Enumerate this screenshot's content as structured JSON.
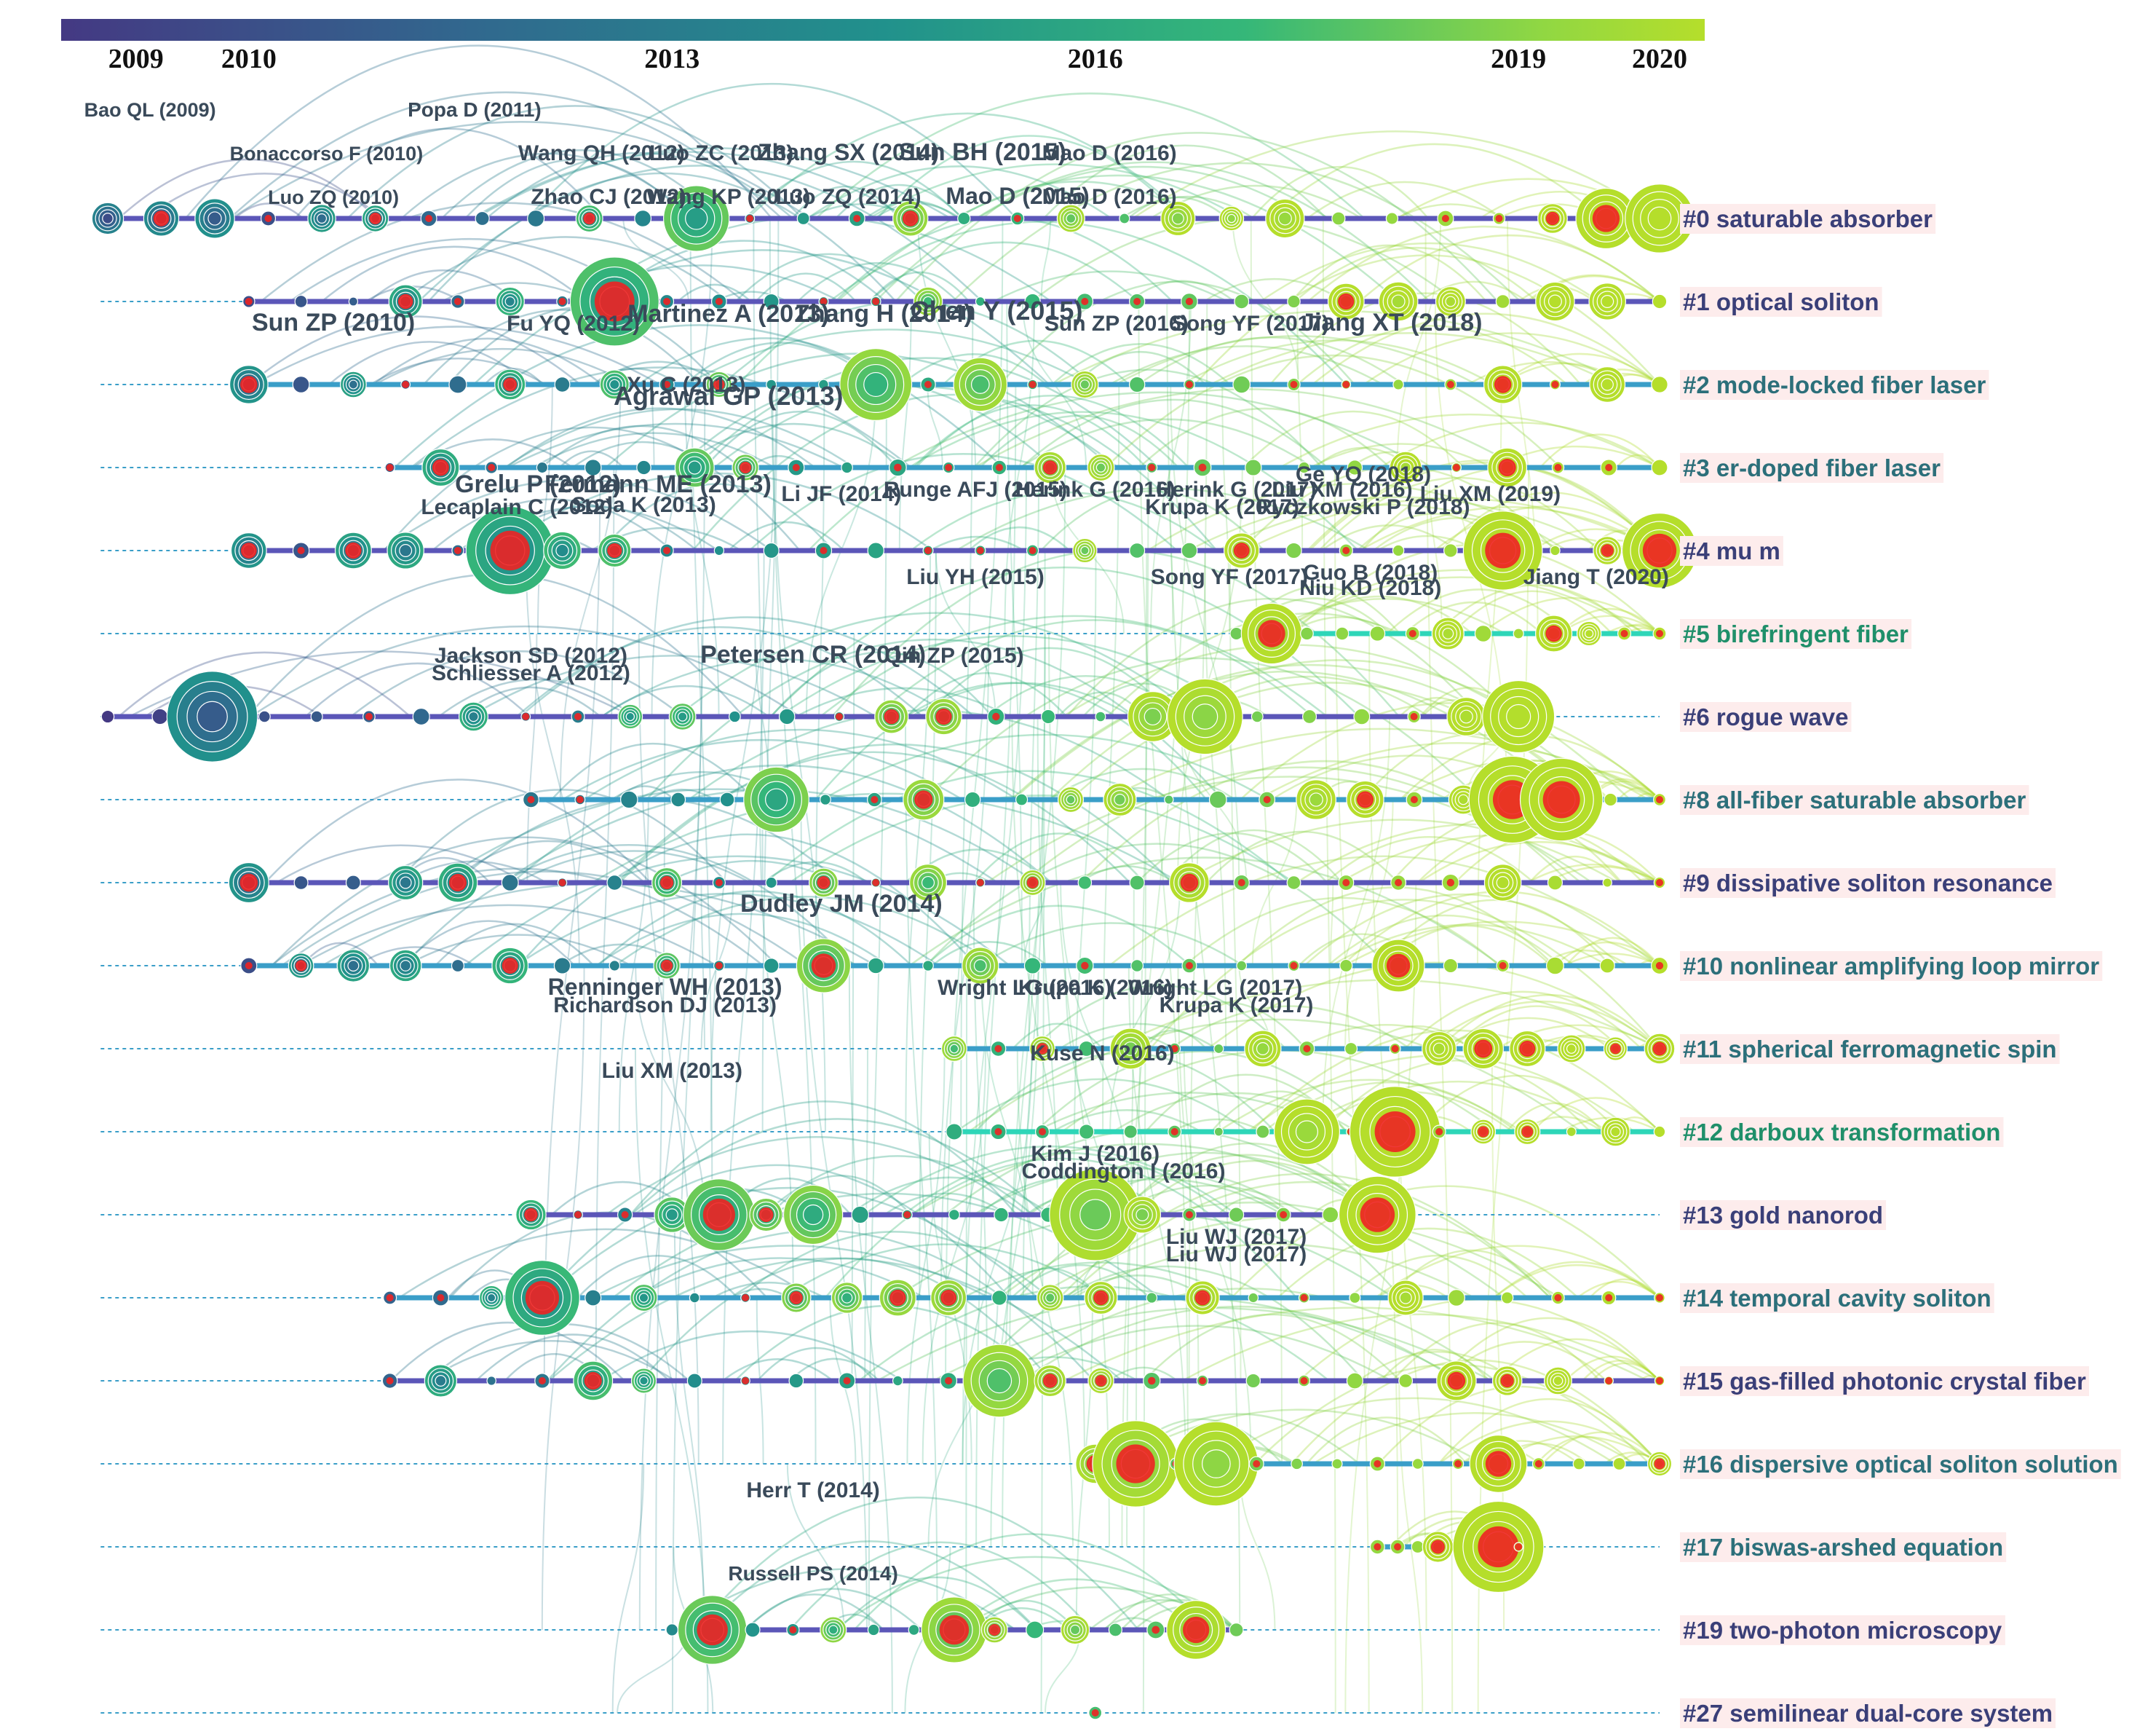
{
  "years": {
    "start": 2009,
    "end": 2020,
    "ticks": [
      {
        "label": "2009",
        "value": 2009.2
      },
      {
        "label": "2010",
        "value": 2010
      },
      {
        "label": "2013",
        "value": 2013
      },
      {
        "label": "2016",
        "value": 2016
      },
      {
        "label": "2019",
        "value": 2019
      },
      {
        "label": "2020",
        "value": 2020
      }
    ]
  },
  "colors": {
    "gradient": [
      "#443983",
      "#31688e",
      "#21918c",
      "#35b779",
      "#90d743",
      "#b5de2b"
    ],
    "burst": "#ee2222",
    "label_bg": "#fdecec",
    "timeline_dark": "#5b56b8",
    "timeline_mid": "#3a9ec8",
    "timeline_light": "#2ed6b8"
  },
  "clusters": [
    {
      "id": "#0",
      "label": "#0 saturable absorber",
      "start": 2009,
      "end": 2020,
      "era": "dark"
    },
    {
      "id": "#1",
      "label": "#1 optical soliton",
      "start": 2010,
      "end": 2020,
      "era": "dark"
    },
    {
      "id": "#2",
      "label": "#2 mode-locked fiber laser",
      "start": 2010,
      "end": 2020,
      "era": "mid"
    },
    {
      "id": "#3",
      "label": "#3 er-doped fiber laser",
      "start": 2011,
      "end": 2020,
      "era": "mid"
    },
    {
      "id": "#4",
      "label": "#4 mu m",
      "start": 2010,
      "end": 2020,
      "era": "dark"
    },
    {
      "id": "#5",
      "label": "#5 birefringent fiber",
      "start": 2017,
      "end": 2020,
      "era": "light"
    },
    {
      "id": "#6",
      "label": "#6 rogue wave",
      "start": 2009,
      "end": 2019,
      "era": "dark"
    },
    {
      "id": "#8",
      "label": "#8 all-fiber saturable absorber",
      "start": 2012,
      "end": 2020,
      "era": "mid"
    },
    {
      "id": "#9",
      "label": "#9 dissipative soliton resonance",
      "start": 2010,
      "end": 2020,
      "era": "dark"
    },
    {
      "id": "#10",
      "label": "#10 nonlinear amplifying loop mirror",
      "start": 2010,
      "end": 2020,
      "era": "mid"
    },
    {
      "id": "#11",
      "label": "#11 spherical ferromagnetic spin",
      "start": 2015,
      "end": 2020,
      "era": "mid"
    },
    {
      "id": "#12",
      "label": "#12 darboux transformation",
      "start": 2015,
      "end": 2020,
      "era": "light"
    },
    {
      "id": "#13",
      "label": "#13 gold nanorod",
      "start": 2012,
      "end": 2018,
      "era": "dark"
    },
    {
      "id": "#14",
      "label": "#14 temporal cavity soliton",
      "start": 2011,
      "end": 2020,
      "era": "mid"
    },
    {
      "id": "#15",
      "label": "#15 gas-filled photonic crystal fiber",
      "start": 2011,
      "end": 2020,
      "era": "dark"
    },
    {
      "id": "#16",
      "label": "#16 dispersive optical soliton solution",
      "start": 2016,
      "end": 2020,
      "era": "mid"
    },
    {
      "id": "#17",
      "label": "#17 biswas-arshed equation",
      "start": 2018,
      "end": 2019,
      "era": "mid"
    },
    {
      "id": "#19",
      "label": "#19 two-photon microscopy",
      "start": 2013,
      "end": 2017,
      "era": "dark"
    },
    {
      "id": "#27",
      "label": "#27 semilinear dual-core system",
      "start": 2016,
      "end": 2016,
      "era": "dark"
    }
  ],
  "authors": [
    {
      "text": "Luo ZQ (2010)",
      "cluster": 0,
      "year": 2010.6,
      "offset": 1,
      "size": 27
    },
    {
      "text": "Zhao CJ (2012)",
      "cluster": 0,
      "year": 2012.55,
      "offset": 1,
      "size": 30
    },
    {
      "text": "Wang KP (2013)",
      "cluster": 0,
      "year": 2013.4,
      "offset": 1,
      "size": 30
    },
    {
      "text": "Luo ZQ (2014)",
      "cluster": 0,
      "year": 2014.25,
      "offset": 1,
      "size": 30
    },
    {
      "text": "Mao D (2015)",
      "cluster": 0,
      "year": 2015.45,
      "offset": 1,
      "size": 32
    },
    {
      "text": "Mao D (2016)",
      "cluster": 0,
      "year": 2016.1,
      "offset": 1,
      "size": 30
    },
    {
      "text": "Bonaccorso F (2010)",
      "cluster": 0,
      "year": 2010.55,
      "offset": 2,
      "size": 27
    },
    {
      "text": "Wang QH (2012)",
      "cluster": 0,
      "year": 2012.5,
      "offset": 2,
      "size": 30
    },
    {
      "text": "Luo ZC (2013)",
      "cluster": 0,
      "year": 2013.35,
      "offset": 2,
      "size": 30
    },
    {
      "text": "Zhang SX (2014)",
      "cluster": 0,
      "year": 2014.25,
      "offset": 2,
      "size": 32
    },
    {
      "text": "Sun BH (2015)",
      "cluster": 0,
      "year": 2015.2,
      "offset": 2,
      "size": 34
    },
    {
      "text": "Mao D (2016)",
      "cluster": 0,
      "year": 2016.1,
      "offset": 2,
      "size": 30
    },
    {
      "text": "Bao QL (2009)",
      "cluster": 0,
      "year": 2009.3,
      "offset": 3,
      "size": 27
    },
    {
      "text": "Popa D (2011)",
      "cluster": 0,
      "year": 2011.6,
      "offset": 3,
      "size": 28
    },
    {
      "text": "Sun ZP (2010)",
      "cluster": 1,
      "year": 2010.6,
      "offset": 0,
      "size": 34
    },
    {
      "text": "Fu YQ (2012)",
      "cluster": 1,
      "year": 2012.3,
      "offset": 0,
      "size": 30
    },
    {
      "text": "Martinez A (2013)",
      "cluster": 1,
      "year": 2013.4,
      "offset": 0.2,
      "size": 34
    },
    {
      "text": "Zhang H (2014)",
      "cluster": 1,
      "year": 2014.5,
      "offset": 0.2,
      "size": 34
    },
    {
      "text": "Chen Y (2015)",
      "cluster": 1,
      "year": 2015.3,
      "offset": 0.25,
      "size": 36
    },
    {
      "text": "Sun ZP (2016)",
      "cluster": 1,
      "year": 2016.15,
      "offset": 0,
      "size": 30
    },
    {
      "text": "Song YF (2017)",
      "cluster": 1,
      "year": 2017.1,
      "offset": 0,
      "size": 30
    },
    {
      "text": "Jiang XT (2018)",
      "cluster": 1,
      "year": 2018.1,
      "offset": 0,
      "size": 34
    },
    {
      "text": "Agrawal GP (2013)",
      "cluster": 2,
      "year": 2013.4,
      "offset": 0.2,
      "size": 36
    },
    {
      "text": "Xu C (2013)",
      "cluster": 2,
      "year": 2013.1,
      "offset": 0.5,
      "size": 30
    },
    {
      "text": "Lecaplain C (2012)",
      "cluster": 3,
      "year": 2011.9,
      "offset": -0.4,
      "size": 30
    },
    {
      "text": "Soda K (2013)",
      "cluster": 3,
      "year": 2012.8,
      "offset": -0.35,
      "size": 30
    },
    {
      "text": "Grelu P (2012)",
      "cluster": 3,
      "year": 2012.05,
      "offset": 0.1,
      "size": 34
    },
    {
      "text": "Fermann ME (2013)",
      "cluster": 3,
      "year": 2012.9,
      "offset": 0.1,
      "size": 34
    },
    {
      "text": "Li JF (2014)",
      "cluster": 3,
      "year": 2014.2,
      "offset": -0.1,
      "size": 30
    },
    {
      "text": "Runge AFJ (2015)",
      "cluster": 3,
      "year": 2015.15,
      "offset": 0,
      "size": 30
    },
    {
      "text": "Herink G (2016)",
      "cluster": 3,
      "year": 2016.0,
      "offset": 0,
      "size": 30
    },
    {
      "text": "Krupa K (2017)",
      "cluster": 3,
      "year": 2016.9,
      "offset": -0.4,
      "size": 30
    },
    {
      "text": "Ryczkowski P (2018)",
      "cluster": 3,
      "year": 2017.9,
      "offset": -0.4,
      "size": 30
    },
    {
      "text": "Herink G (2017)",
      "cluster": 3,
      "year": 2017.0,
      "offset": 0,
      "size": 30
    },
    {
      "text": "Liu XM (2016)",
      "cluster": 3,
      "year": 2017.75,
      "offset": 0,
      "size": 30
    },
    {
      "text": "Liu XM (2019)",
      "cluster": 3,
      "year": 2018.8,
      "offset": -0.1,
      "size": 30
    },
    {
      "text": "Ge YQ (2018)",
      "cluster": 3,
      "year": 2017.9,
      "offset": 0.35,
      "size": 30
    },
    {
      "text": "Niu KD (2018)",
      "cluster": 4,
      "year": 2017.95,
      "offset": -0.35,
      "size": 30
    },
    {
      "text": "Liu YH (2015)",
      "cluster": 4,
      "year": 2015.15,
      "offset": -0.1,
      "size": 30
    },
    {
      "text": "Song YF (2017)",
      "cluster": 4,
      "year": 2016.95,
      "offset": -0.1,
      "size": 30
    },
    {
      "text": "Guo B (2018)",
      "cluster": 4,
      "year": 2017.95,
      "offset": 0,
      "size": 30
    },
    {
      "text": "Jiang T (2020)",
      "cluster": 4,
      "year": 2019.55,
      "offset": -0.1,
      "size": 30
    },
    {
      "text": "Schliesser A (2012)",
      "cluster": 5,
      "year": 2012.0,
      "offset": -0.4,
      "size": 30
    },
    {
      "text": "Jackson SD (2012)",
      "cluster": 5,
      "year": 2012.0,
      "offset": 0,
      "size": 30
    },
    {
      "text": "Petersen CR (2014)",
      "cluster": 5,
      "year": 2014.0,
      "offset": 0,
      "size": 34
    },
    {
      "text": "Qin ZP (2015)",
      "cluster": 5,
      "year": 2015.0,
      "offset": 0,
      "size": 30
    },
    {
      "text": "Dudley JM (2014)",
      "cluster": 8,
      "year": 2014.2,
      "offset": 0,
      "size": 34
    },
    {
      "text": "Richardson DJ (2013)",
      "cluster": 9,
      "year": 2012.95,
      "offset": -0.4,
      "size": 30
    },
    {
      "text": "Krupa K (2017)",
      "cluster": 9,
      "year": 2017.0,
      "offset": -0.4,
      "size": 30
    },
    {
      "text": "Renninger WH (2013)",
      "cluster": 9,
      "year": 2012.95,
      "offset": 0,
      "size": 32
    },
    {
      "text": "Wright LG (2016)",
      "cluster": 9,
      "year": 2015.5,
      "offset": 0,
      "size": 30
    },
    {
      "text": "Krupa K (2016)",
      "cluster": 9,
      "year": 2016.0,
      "offset": 0,
      "size": 30
    },
    {
      "text": "Wright LG (2017)",
      "cluster": 9,
      "year": 2016.85,
      "offset": 0,
      "size": 30
    },
    {
      "text": "Liu XM (2013)",
      "cluster": 10,
      "year": 2013.0,
      "offset": 0,
      "size": 30
    },
    {
      "text": "Kuse N (2016)",
      "cluster": 10,
      "year": 2016.05,
      "offset": 0.4,
      "size": 30
    },
    {
      "text": "Coddington I (2016)",
      "cluster": 11,
      "year": 2016.2,
      "offset": -0.4,
      "size": 30
    },
    {
      "text": "Kim J (2016)",
      "cluster": 11,
      "year": 2016.0,
      "offset": 0,
      "size": 30
    },
    {
      "text": "Liu WJ (2017)",
      "cluster": 12,
      "year": 2017.0,
      "offset": -0.4,
      "size": 30
    },
    {
      "text": "Liu WJ (2017)",
      "cluster": 12,
      "year": 2017.0,
      "offset": 0,
      "size": 30
    },
    {
      "text": "Herr T (2014)",
      "cluster": 15,
      "year": 2014.0,
      "offset": -0.1,
      "size": 30
    },
    {
      "text": "Russell PS (2014)",
      "cluster": 16,
      "year": 2014.0,
      "offset": -0.1,
      "size": 28
    }
  ]
}
